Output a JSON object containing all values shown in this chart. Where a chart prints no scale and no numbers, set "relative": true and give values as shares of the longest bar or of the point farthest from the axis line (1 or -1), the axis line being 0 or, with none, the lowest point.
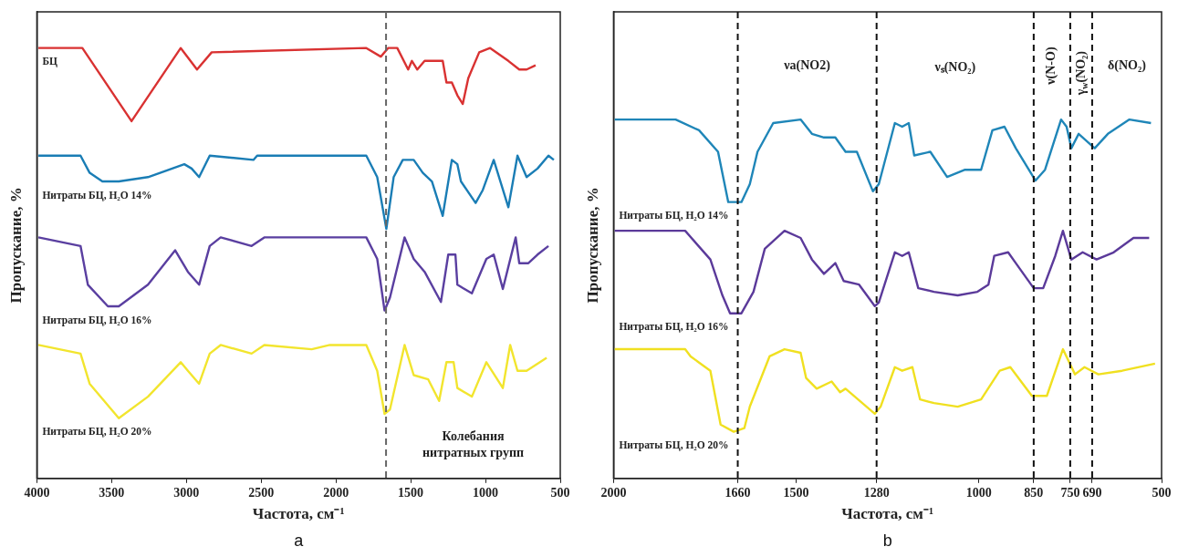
{
  "chart_data": [
    {
      "type": "line",
      "relative": true,
      "xlabel": "Частота, см⁻¹",
      "ylabel": "Пропускание, %",
      "xlim": [
        4000,
        500
      ],
      "xticks": [
        4000,
        3500,
        3000,
        2500,
        2000,
        1500,
        1000,
        500
      ],
      "series": [
        {
          "name": "БЦ",
          "color": "#d93232",
          "x": [
            3990,
            3696,
            3367,
            3038,
            2929,
            2831,
            1797,
            1700,
            1651,
            1590,
            1517,
            1492,
            1456,
            1407,
            1286,
            1261,
            1225,
            1188,
            1152,
            1115,
            1042,
            969,
            847,
            774,
            725,
            665
          ],
          "values": [
            1,
            1,
            0.83,
            1,
            0.95,
            0.99,
            1,
            0.98,
            1,
            1,
            0.95,
            0.97,
            0.95,
            0.97,
            0.97,
            0.92,
            0.92,
            0.89,
            0.87,
            0.93,
            0.99,
            1,
            0.97,
            0.95,
            0.95,
            0.96
          ]
        },
        {
          "name": "Нитраты БЦ, H₂O 14%",
          "color": "#1a7db5",
          "x": [
            3990,
            3708,
            3647,
            3562,
            3452,
            3257,
            3014,
            2965,
            2915,
            2844,
            2552,
            2527,
            1797,
            1724,
            1663,
            1614,
            1553,
            1480,
            1419,
            1358,
            1286,
            1225,
            1188,
            1164,
            1066,
            1018,
            945,
            847,
            786,
            725,
            652,
            579,
            543
          ],
          "values": [
            0.75,
            0.75,
            0.71,
            0.69,
            0.69,
            0.7,
            0.73,
            0.72,
            0.7,
            0.75,
            0.74,
            0.75,
            0.75,
            0.7,
            0.58,
            0.7,
            0.74,
            0.74,
            0.71,
            0.69,
            0.61,
            0.74,
            0.73,
            0.69,
            0.64,
            0.67,
            0.74,
            0.63,
            0.75,
            0.7,
            0.72,
            0.75,
            0.74
          ]
        },
        {
          "name": "Нитраты БЦ, H₂O 16%",
          "color": "#5a3fa0",
          "x": [
            3990,
            3708,
            3659,
            3525,
            3452,
            3257,
            3075,
            2990,
            2915,
            2844,
            2771,
            2564,
            2479,
            1797,
            1724,
            1675,
            1639,
            1541,
            1480,
            1407,
            1298,
            1249,
            1201,
            1188,
            1091,
            994,
            945,
            884,
            798,
            774,
            713,
            652,
            579
          ],
          "values": [
            0.56,
            0.54,
            0.45,
            0.4,
            0.4,
            0.45,
            0.53,
            0.48,
            0.45,
            0.54,
            0.56,
            0.54,
            0.56,
            0.56,
            0.51,
            0.39,
            0.42,
            0.56,
            0.51,
            0.48,
            0.41,
            0.52,
            0.52,
            0.45,
            0.43,
            0.51,
            0.52,
            0.44,
            0.56,
            0.5,
            0.5,
            0.52,
            0.54
          ]
        },
        {
          "name": "Нитраты БЦ, H₂O 20%",
          "color": "#f2e52e",
          "x": [
            3990,
            3708,
            3647,
            3452,
            3257,
            3038,
            2990,
            2915,
            2844,
            2771,
            2564,
            2479,
            2162,
            2041,
            1797,
            1724,
            1675,
            1639,
            1541,
            1480,
            1383,
            1310,
            1261,
            1213,
            1188,
            1091,
            994,
            884,
            835,
            786,
            725,
            591
          ],
          "values": [
            0.31,
            0.29,
            0.22,
            0.14,
            0.19,
            0.27,
            0.25,
            0.22,
            0.29,
            0.31,
            0.29,
            0.31,
            0.3,
            0.31,
            0.31,
            0.25,
            0.15,
            0.16,
            0.31,
            0.24,
            0.23,
            0.18,
            0.27,
            0.27,
            0.21,
            0.19,
            0.27,
            0.21,
            0.31,
            0.25,
            0.25,
            0.28
          ]
        }
      ],
      "ref_lines": [
        {
          "axis": "x",
          "value": 1665,
          "color": "#666666",
          "line_style": "dashed"
        }
      ],
      "annotations": [
        "Колебания\nнитратных групп",
        "a"
      ]
    },
    {
      "type": "line",
      "relative": true,
      "xlabel": "Частота, см⁻¹",
      "ylabel": "Пропускание, %",
      "xlim": [
        2000,
        500
      ],
      "xticks": [
        2000,
        1660,
        1500,
        1280,
        1000,
        850,
        750,
        690,
        500
      ],
      "series": [
        {
          "name": "Нитраты БЦ, H₂O 14%",
          "color": "#1f86b8",
          "x": [
            1997,
            1830,
            1766,
            1714,
            1686,
            1650,
            1627,
            1606,
            1563,
            1488,
            1457,
            1424,
            1393,
            1365,
            1334,
            1290,
            1274,
            1230,
            1210,
            1192,
            1177,
            1133,
            1087,
            1038,
            994,
            963,
            930,
            899,
            845,
            819,
            775,
            760,
            747,
            727,
            683,
            647,
            588,
            529
          ],
          "values": [
            1,
            1,
            0.97,
            0.91,
            0.77,
            0.77,
            0.82,
            0.91,
            0.99,
            1,
            0.96,
            0.95,
            0.95,
            0.91,
            0.91,
            0.8,
            0.82,
            0.99,
            0.98,
            0.99,
            0.9,
            0.91,
            0.84,
            0.86,
            0.86,
            0.97,
            0.98,
            0.92,
            0.83,
            0.86,
            1,
            0.98,
            0.92,
            0.96,
            0.92,
            0.96,
            1,
            0.99
          ]
        },
        {
          "name": "Нитраты БЦ, H₂O 16%",
          "color": "#5b3a9a",
          "x": [
            1997,
            1804,
            1735,
            1702,
            1681,
            1650,
            1617,
            1586,
            1532,
            1488,
            1457,
            1424,
            1393,
            1370,
            1328,
            1285,
            1274,
            1230,
            1210,
            1192,
            1166,
            1123,
            1058,
            1004,
            974,
            958,
            920,
            899,
            850,
            824,
            791,
            770,
            747,
            716,
            678,
            631,
            577,
            534
          ],
          "values": [
            0.69,
            0.69,
            0.61,
            0.51,
            0.46,
            0.46,
            0.52,
            0.64,
            0.69,
            0.67,
            0.61,
            0.57,
            0.6,
            0.55,
            0.54,
            0.48,
            0.49,
            0.63,
            0.62,
            0.63,
            0.53,
            0.52,
            0.51,
            0.52,
            0.54,
            0.62,
            0.63,
            0.6,
            0.53,
            0.53,
            0.62,
            0.69,
            0.61,
            0.63,
            0.61,
            0.63,
            0.67,
            0.67
          ]
        },
        {
          "name": "Нитраты БЦ, H₂O 20%",
          "color": "#f0e020",
          "x": [
            1997,
            1804,
            1789,
            1735,
            1707,
            1671,
            1642,
            1627,
            1573,
            1532,
            1488,
            1473,
            1444,
            1403,
            1380,
            1365,
            1285,
            1269,
            1230,
            1210,
            1182,
            1161,
            1123,
            1058,
            994,
            943,
            914,
            855,
            814,
            770,
            737,
            711,
            673,
            608,
            518
          ],
          "values": [
            0.36,
            0.36,
            0.34,
            0.3,
            0.15,
            0.13,
            0.14,
            0.2,
            0.34,
            0.36,
            0.35,
            0.28,
            0.25,
            0.27,
            0.24,
            0.25,
            0.18,
            0.2,
            0.31,
            0.3,
            0.31,
            0.22,
            0.21,
            0.2,
            0.22,
            0.3,
            0.31,
            0.23,
            0.23,
            0.36,
            0.29,
            0.31,
            0.29,
            0.3,
            0.32
          ]
        }
      ],
      "ref_lines": [
        {
          "axis": "x",
          "value": 1660,
          "color": "#111111",
          "line_style": "dashed"
        },
        {
          "axis": "x",
          "value": 1280,
          "color": "#111111",
          "line_style": "dashed"
        },
        {
          "axis": "x",
          "value": 850,
          "color": "#111111",
          "line_style": "dashed"
        },
        {
          "axis": "x",
          "value": 750,
          "color": "#111111",
          "line_style": "dashed"
        },
        {
          "axis": "x",
          "value": 690,
          "color": "#111111",
          "line_style": "dashed"
        }
      ],
      "annotations": [
        "νa(NO2)",
        "νₛ(NO₂)",
        "ν(N-O)",
        "γ$_{w}$(NO₂)",
        "δ(NO₂)",
        "b"
      ]
    }
  ]
}
